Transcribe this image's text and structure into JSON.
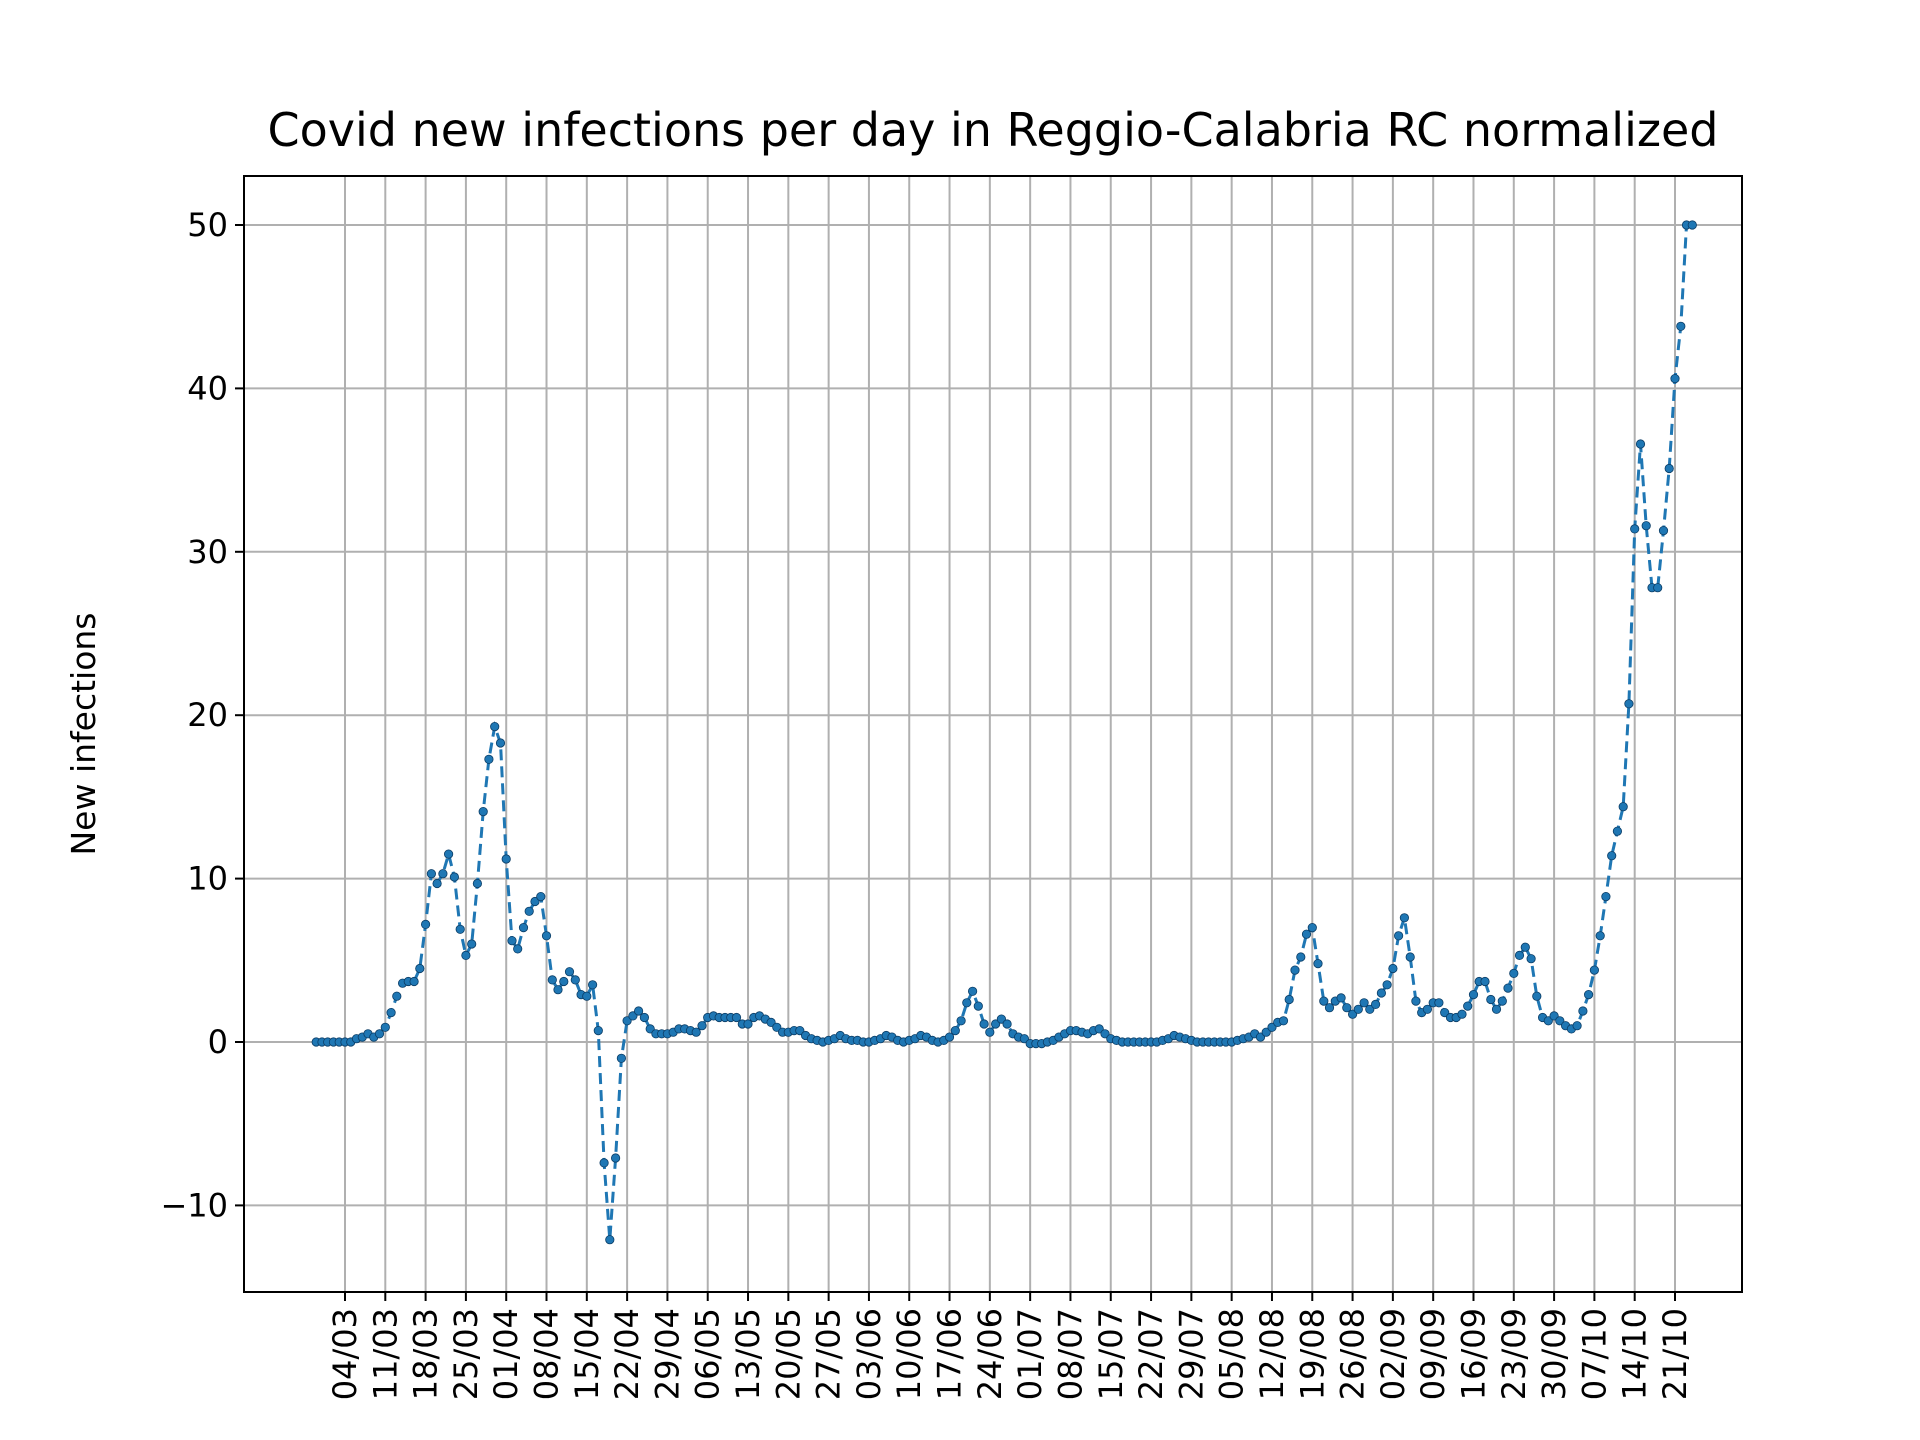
{
  "chart_data": {
    "type": "line",
    "title": "Covid new infections per day in Reggio-Calabria RC normalized",
    "xlabel": "",
    "ylabel": "New infections",
    "grid": true,
    "ylim": [
      -15.3,
      53
    ],
    "yticks": [
      -10,
      0,
      10,
      20,
      30,
      40,
      50
    ],
    "ytick_labels": [
      "−10",
      "0",
      "10",
      "20",
      "30",
      "40",
      "50"
    ],
    "xtick_labels": [
      "04/03",
      "11/03",
      "18/03",
      "25/03",
      "01/04",
      "08/04",
      "15/04",
      "22/04",
      "29/04",
      "06/05",
      "13/05",
      "20/05",
      "27/05",
      "03/06",
      "10/06",
      "17/06",
      "24/06",
      "01/07",
      "08/07",
      "15/07",
      "22/07",
      "29/07",
      "05/08",
      "12/08",
      "19/08",
      "26/08",
      "02/09",
      "09/09",
      "16/09",
      "23/09",
      "30/09",
      "07/10",
      "14/10",
      "21/10"
    ],
    "x_start_label": "28/02",
    "colors": {
      "line": "#1f77b4",
      "marker": "#1f77b4",
      "grid": "#b0b0b0"
    },
    "series": [
      {
        "style": "dashed line with dot markers",
        "values": [
          0,
          0,
          0,
          0,
          0,
          0,
          0,
          0.2,
          0.3,
          0.5,
          0.3,
          0.5,
          0.9,
          1.8,
          2.8,
          3.6,
          3.7,
          3.7,
          4.5,
          7.2,
          10.3,
          9.7,
          10.3,
          11.5,
          10.1,
          6.9,
          5.3,
          6,
          9.7,
          14.1,
          17.3,
          19.3,
          18.3,
          11.2,
          6.2,
          5.7,
          7,
          8,
          8.6,
          8.9,
          6.5,
          3.8,
          3.2,
          3.7,
          4.3,
          3.8,
          2.9,
          2.8,
          3.5,
          0.7,
          -7.4,
          -12.1,
          -7.1,
          -1,
          1.3,
          1.6,
          1.9,
          1.5,
          0.8,
          0.5,
          0.5,
          0.5,
          0.6,
          0.8,
          0.8,
          0.7,
          0.6,
          1,
          1.5,
          1.6,
          1.5,
          1.5,
          1.5,
          1.5,
          1.1,
          1.1,
          1.5,
          1.6,
          1.4,
          1.2,
          0.9,
          0.6,
          0.6,
          0.7,
          0.7,
          0.4,
          0.2,
          0.1,
          0,
          0.1,
          0.2,
          0.4,
          0.2,
          0.1,
          0.1,
          0,
          0,
          0.1,
          0.2,
          0.4,
          0.3,
          0.1,
          0,
          0.1,
          0.2,
          0.4,
          0.3,
          0.1,
          0,
          0.1,
          0.3,
          0.7,
          1.3,
          2.4,
          3.1,
          2.2,
          1.1,
          0.6,
          1.1,
          1.4,
          1.1,
          0.5,
          0.3,
          0.2,
          -0.1,
          -0.1,
          -0.1,
          0,
          0.1,
          0.3,
          0.5,
          0.7,
          0.7,
          0.6,
          0.5,
          0.7,
          0.8,
          0.5,
          0.2,
          0.1,
          0,
          0,
          0,
          0,
          0,
          0,
          0,
          0.1,
          0.2,
          0.4,
          0.3,
          0.2,
          0.1,
          0,
          0,
          0,
          0,
          0,
          0,
          0,
          0.1,
          0.2,
          0.3,
          0.5,
          0.3,
          0.6,
          0.9,
          1.2,
          1.3,
          2.6,
          4.4,
          5.2,
          6.6,
          7,
          4.8,
          2.5,
          2.1,
          2.5,
          2.7,
          2.1,
          1.7,
          2,
          2.4,
          2,
          2.3,
          3,
          3.5,
          4.5,
          6.5,
          7.6,
          5.2,
          2.5,
          1.8,
          2,
          2.4,
          2.4,
          1.8,
          1.5,
          1.5,
          1.7,
          2.2,
          2.9,
          3.7,
          3.7,
          2.6,
          2,
          2.5,
          3.3,
          4.2,
          5.3,
          5.8,
          5.1,
          2.8,
          1.5,
          1.3,
          1.6,
          1.3,
          1,
          0.8,
          1,
          1.9,
          2.9,
          4.4,
          6.5,
          8.9,
          11.4,
          12.9,
          14.4,
          20.7,
          31.4,
          36.6,
          31.6,
          27.8,
          27.8,
          31.3,
          35.1,
          40.6,
          43.8,
          50,
          50
        ]
      }
    ]
  }
}
